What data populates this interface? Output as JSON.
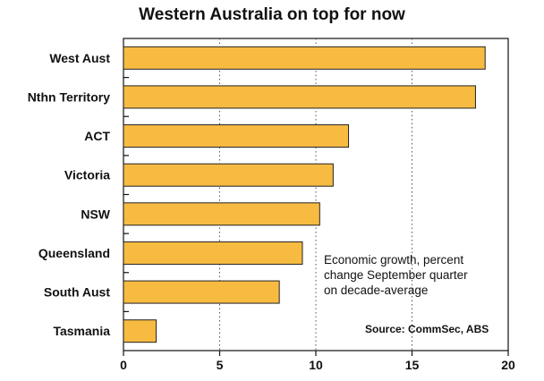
{
  "chart_data": {
    "type": "bar",
    "orientation": "horizontal",
    "title": "Western Australia on top for now",
    "categories": [
      "West Aust",
      "Nthn Territory",
      "ACT",
      "Victoria",
      "NSW",
      "Queensland",
      "South Aust",
      "Tasmania"
    ],
    "values": [
      18.8,
      18.3,
      11.7,
      10.9,
      10.2,
      9.3,
      8.1,
      1.7
    ],
    "xlim": [
      0,
      20
    ],
    "xticks": [
      0,
      5,
      10,
      15,
      20
    ],
    "grid": "vertical dotted at 5, 10, 15",
    "annotation": [
      "Economic growth, percent",
      "change September quarter",
      "on decade-average"
    ],
    "source": "Source: CommSec, ABS",
    "bar_color": "#f7bb42",
    "bar_edge_color": "#222222"
  }
}
